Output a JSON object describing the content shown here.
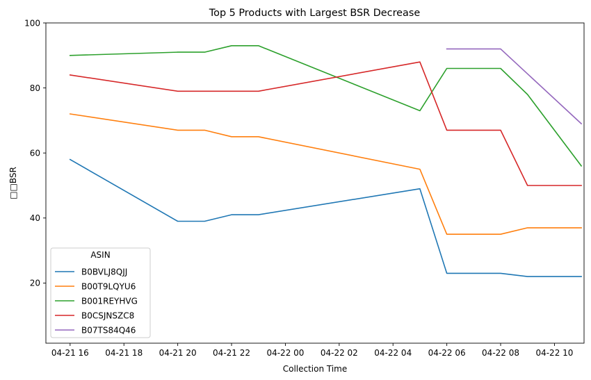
{
  "chart_data": {
    "type": "line",
    "title": "Top 5 Products with Largest BSR Decrease",
    "xlabel": "Collection Time",
    "ylabel": "□□BSR",
    "x_ticks": [
      {
        "hour": 16,
        "label": "04-21 16"
      },
      {
        "hour": 18,
        "label": "04-21 18"
      },
      {
        "hour": 20,
        "label": "04-21 20"
      },
      {
        "hour": 22,
        "label": "04-21 22"
      },
      {
        "hour": 24,
        "label": "04-22 00"
      },
      {
        "hour": 26,
        "label": "04-22 02"
      },
      {
        "hour": 28,
        "label": "04-22 04"
      },
      {
        "hour": 30,
        "label": "04-22 06"
      },
      {
        "hour": 32,
        "label": "04-22 08"
      },
      {
        "hour": 34,
        "label": "04-22 10"
      }
    ],
    "xlim": [
      15.1,
      35.1
    ],
    "ylim": [
      1.5,
      100
    ],
    "y_ticks": [
      20,
      40,
      60,
      80,
      100
    ],
    "grid": false,
    "legend": {
      "title": "ASIN",
      "placement": "lower-left"
    },
    "series": [
      {
        "name": "B0BVLJ8QJJ",
        "color": "#1f77b4",
        "points": [
          [
            16,
            58
          ],
          [
            20,
            39
          ],
          [
            21,
            39
          ],
          [
            22,
            41
          ],
          [
            23,
            41
          ],
          [
            29,
            49
          ],
          [
            30,
            23
          ],
          [
            32,
            23
          ],
          [
            33,
            22
          ],
          [
            36,
            22
          ]
        ]
      },
      {
        "name": "B00T9LQYU6",
        "color": "#ff7f0e",
        "points": [
          [
            16,
            72
          ],
          [
            20,
            67
          ],
          [
            21,
            67
          ],
          [
            22,
            65
          ],
          [
            23,
            65
          ],
          [
            29,
            55
          ],
          [
            30,
            35
          ],
          [
            32,
            35
          ],
          [
            33,
            37
          ],
          [
            36,
            37
          ]
        ]
      },
      {
        "name": "B001REYHVG",
        "color": "#2ca02c",
        "points": [
          [
            16,
            90
          ],
          [
            20,
            91
          ],
          [
            21,
            91
          ],
          [
            22,
            93
          ],
          [
            23,
            93
          ],
          [
            29,
            73
          ],
          [
            30,
            86
          ],
          [
            32,
            86
          ],
          [
            33,
            78
          ],
          [
            36,
            56
          ]
        ]
      },
      {
        "name": "B0CSJNSZC8",
        "color": "#d62728",
        "points": [
          [
            16,
            84
          ],
          [
            20,
            79
          ],
          [
            21,
            79
          ],
          [
            22,
            79
          ],
          [
            23,
            79
          ],
          [
            29,
            88
          ],
          [
            30,
            67
          ],
          [
            32,
            67
          ],
          [
            33,
            50
          ],
          [
            36,
            50
          ]
        ]
      },
      {
        "name": "B07TS84Q46",
        "color": "#9467bd",
        "points": [
          [
            30,
            92
          ],
          [
            32,
            92
          ],
          [
            36,
            69
          ]
        ]
      }
    ]
  }
}
